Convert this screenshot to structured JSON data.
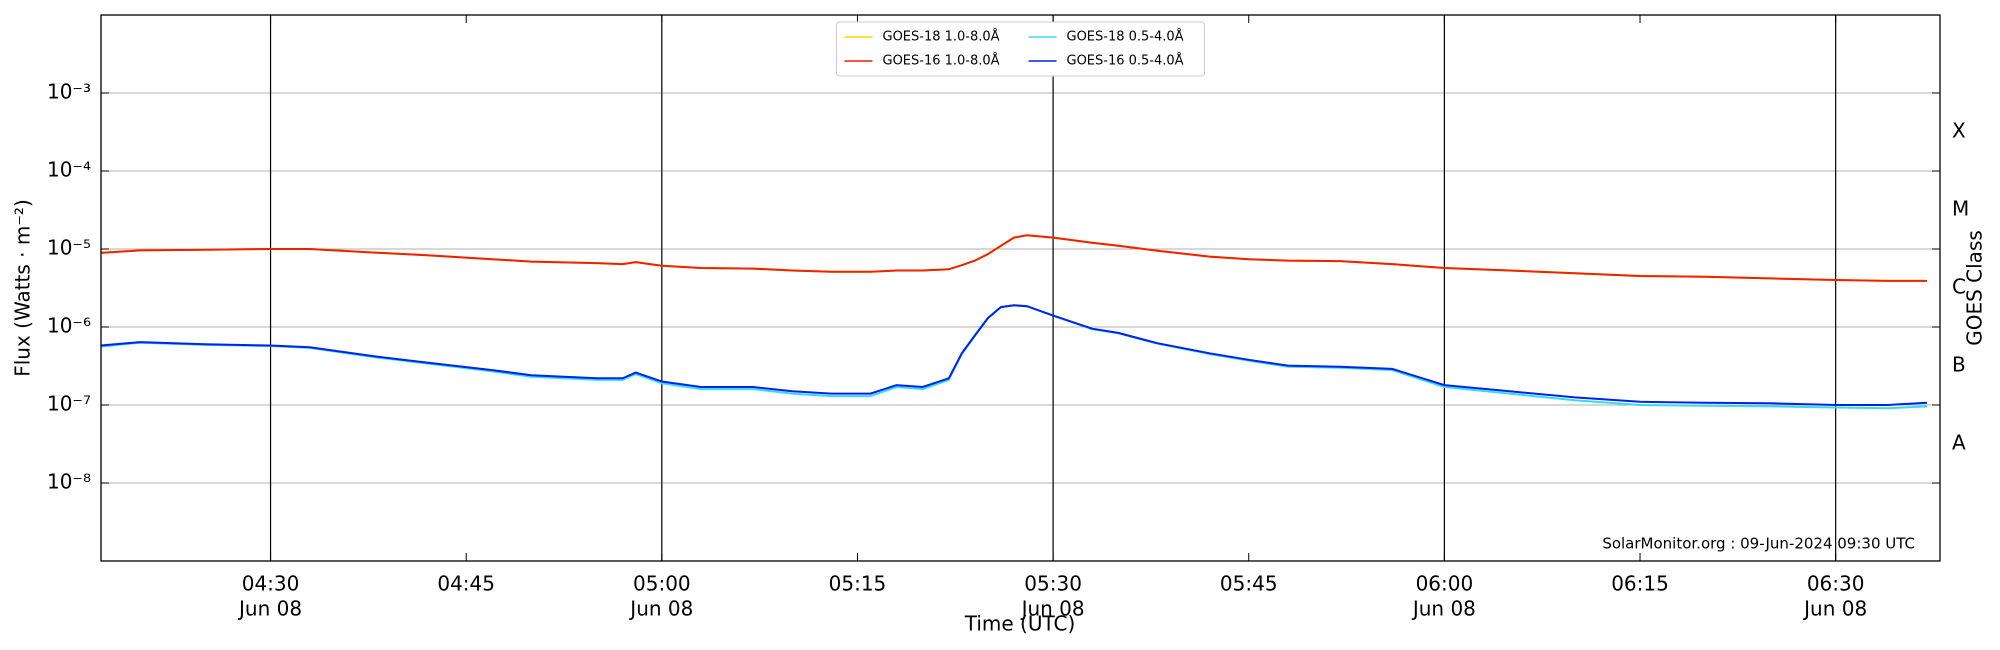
{
  "chart_data": {
    "type": "line",
    "xlabel": "Time (UTC)",
    "ylabel": "Flux (Watts · m⁻²)",
    "y2label": "GOES Class",
    "annotation": "SolarMonitor.org : 09-Jun-2024 09:30 UTC",
    "log_scale": true,
    "grid": true,
    "legend": "upper center",
    "x": [
      "04:17",
      "04:20",
      "04:25",
      "04:30",
      "04:33",
      "04:38",
      "04:42",
      "04:47",
      "04:50",
      "04:55",
      "04:57",
      "04:58",
      "05:00",
      "05:03",
      "05:07",
      "05:10",
      "05:13",
      "05:16",
      "05:18",
      "05:20",
      "05:22",
      "05:23",
      "05:24",
      "05:25",
      "05:26",
      "05:27",
      "05:28",
      "05:30",
      "05:33",
      "05:35",
      "05:38",
      "05:42",
      "05:45",
      "05:48",
      "05:52",
      "05:56",
      "06:00",
      "06:05",
      "06:10",
      "06:15",
      "06:20",
      "06:25",
      "06:30",
      "06:34",
      "06:37"
    ],
    "series": [
      {
        "name": "GOES-18 1.0-8.0Å",
        "color": "#ffd700",
        "values": [
          8.9e-06,
          9.6e-06,
          9.8e-06,
          1e-05,
          1e-05,
          9e-06,
          8.3e-06,
          7.4e-06,
          6.9e-06,
          6.6e-06,
          6.4e-06,
          6.8e-06,
          6.1e-06,
          5.7e-06,
          5.6e-06,
          5.3e-06,
          5.1e-06,
          5.1e-06,
          5.3e-06,
          5.3e-06,
          5.5e-06,
          6.2e-06,
          7.1e-06,
          8.6e-06,
          1.1e-05,
          1.4e-05,
          1.5e-05,
          1.4e-05,
          1.2e-05,
          1.1e-05,
          9.5e-06,
          8e-06,
          7.4e-06,
          7.1e-06,
          7e-06,
          6.4e-06,
          5.7e-06,
          5.3e-06,
          4.9e-06,
          4.5e-06,
          4.4e-06,
          4.2e-06,
          4e-06,
          3.9e-06,
          3.9e-06
        ]
      },
      {
        "name": "GOES-16 1.0-8.0Å",
        "color": "#ee2200",
        "values": [
          8.9e-06,
          9.6e-06,
          9.8e-06,
          1e-05,
          1e-05,
          9e-06,
          8.3e-06,
          7.4e-06,
          6.9e-06,
          6.6e-06,
          6.4e-06,
          6.8e-06,
          6.1e-06,
          5.7e-06,
          5.6e-06,
          5.3e-06,
          5.1e-06,
          5.1e-06,
          5.3e-06,
          5.3e-06,
          5.5e-06,
          6.2e-06,
          7.1e-06,
          8.6e-06,
          1.1e-05,
          1.4e-05,
          1.5e-05,
          1.4e-05,
          1.2e-05,
          1.1e-05,
          9.5e-06,
          8e-06,
          7.4e-06,
          7.1e-06,
          7e-06,
          6.4e-06,
          5.7e-06,
          5.3e-06,
          4.9e-06,
          4.5e-06,
          4.4e-06,
          4.2e-06,
          4e-06,
          3.9e-06,
          3.9e-06
        ]
      },
      {
        "name": "GOES-18 0.5-4.0Å",
        "color": "#33ddee",
        "values": [
          5.6e-07,
          6.3e-07,
          5.9e-07,
          5.7e-07,
          5.4e-07,
          4.1e-07,
          3.4e-07,
          2.7e-07,
          2.3e-07,
          2.1e-07,
          2.1e-07,
          2.5e-07,
          1.9e-07,
          1.6e-07,
          1.6e-07,
          1.4e-07,
          1.3e-07,
          1.3e-07,
          1.7e-07,
          1.6e-07,
          2.1e-07,
          4.5e-07,
          7.7e-07,
          1.3e-06,
          1.8e-06,
          1.9e-06,
          1.85e-06,
          1.4e-06,
          9.4e-07,
          8.3e-07,
          6.1e-07,
          4.5e-07,
          3.7e-07,
          3.1e-07,
          3e-07,
          2.8e-07,
          1.7e-07,
          1.4e-07,
          1.15e-07,
          1e-07,
          9.8e-08,
          9.6e-08,
          9.3e-08,
          9.1e-08,
          9.6e-08
        ]
      },
      {
        "name": "GOES-16 0.5-4.0Å",
        "color": "#0022ee",
        "values": [
          5.8e-07,
          6.4e-07,
          6e-07,
          5.8e-07,
          5.5e-07,
          4.2e-07,
          3.5e-07,
          2.8e-07,
          2.4e-07,
          2.2e-07,
          2.2e-07,
          2.6e-07,
          2e-07,
          1.7e-07,
          1.7e-07,
          1.5e-07,
          1.4e-07,
          1.4e-07,
          1.8e-07,
          1.7e-07,
          2.2e-07,
          4.6e-07,
          7.8e-07,
          1.3e-06,
          1.8e-06,
          1.9e-06,
          1.85e-06,
          1.4e-06,
          9.5e-07,
          8.4e-07,
          6.2e-07,
          4.6e-07,
          3.8e-07,
          3.2e-07,
          3.1e-07,
          2.9e-07,
          1.8e-07,
          1.5e-07,
          1.25e-07,
          1.1e-07,
          1.07e-07,
          1.05e-07,
          1e-07,
          1e-07,
          1.07e-07
        ]
      }
    ],
    "xlim": [
      "04:17",
      "06:38"
    ],
    "xticks": [
      {
        "value": "04:30",
        "label": "04:30",
        "date": "Jun 08"
      },
      {
        "value": "04:45",
        "label": "04:45"
      },
      {
        "value": "05:00",
        "label": "05:00",
        "date": "Jun 08"
      },
      {
        "value": "05:15",
        "label": "05:15"
      },
      {
        "value": "05:30",
        "label": "05:30",
        "date": "Jun 08"
      },
      {
        "value": "05:45",
        "label": "05:45"
      },
      {
        "value": "06:00",
        "label": "06:00",
        "date": "Jun 08"
      },
      {
        "value": "06:15",
        "label": "06:15"
      },
      {
        "value": "06:30",
        "label": "06:30",
        "date": "Jun 08"
      }
    ],
    "ylim": [
      1e-09,
      0.01
    ],
    "yticks": [
      {
        "value": 1e-08,
        "label": "10⁻⁸"
      },
      {
        "value": 1e-07,
        "label": "10⁻⁷"
      },
      {
        "value": 1e-06,
        "label": "10⁻⁶"
      },
      {
        "value": 1e-05,
        "label": "10⁻⁵"
      },
      {
        "value": 0.0001,
        "label": "10⁻⁴"
      },
      {
        "value": 0.001,
        "label": "10⁻³"
      }
    ],
    "y2lim": [
      1e-09,
      0.01
    ],
    "y2ticks": [
      {
        "value": 3.162e-08,
        "label": "A"
      },
      {
        "value": 3.162e-07,
        "label": "B"
      },
      {
        "value": 3.162e-06,
        "label": "C"
      },
      {
        "value": 3.162e-05,
        "label": "M"
      },
      {
        "value": 0.0003162,
        "label": "X"
      }
    ]
  }
}
